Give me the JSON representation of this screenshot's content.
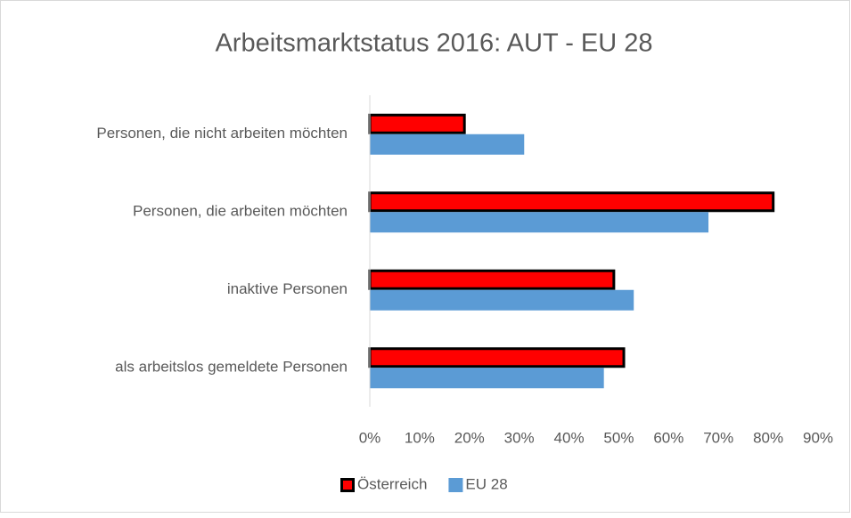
{
  "chart_data": {
    "type": "bar",
    "orientation": "horizontal",
    "title": "Arbeitsmarktstatus 2016: AUT - EU 28",
    "categories": [
      "Personen, die nicht arbeiten möchten",
      "Personen, die arbeiten möchten",
      "inaktive Personen",
      "als arbeitslos gemeldete Personen"
    ],
    "series": [
      {
        "name": "Österreich",
        "color": "#ff0000",
        "edgecolor": "#000000",
        "values": [
          19,
          81,
          49,
          51
        ]
      },
      {
        "name": "EU 28",
        "color": "#5b9bd5",
        "values": [
          31,
          68,
          53,
          47
        ]
      }
    ],
    "xlim": [
      0,
      90
    ],
    "xticks": [
      {
        "value": 0,
        "label": "0%"
      },
      {
        "value": 10,
        "label": "10%"
      },
      {
        "value": 20,
        "label": "20%"
      },
      {
        "value": 30,
        "label": "30%"
      },
      {
        "value": 40,
        "label": "40%"
      },
      {
        "value": 50,
        "label": "50%"
      },
      {
        "value": 60,
        "label": "60%"
      },
      {
        "value": 70,
        "label": "70%"
      },
      {
        "value": 80,
        "label": "80%"
      },
      {
        "value": 90,
        "label": "90%"
      }
    ],
    "grid": false,
    "legend": "bottom"
  }
}
